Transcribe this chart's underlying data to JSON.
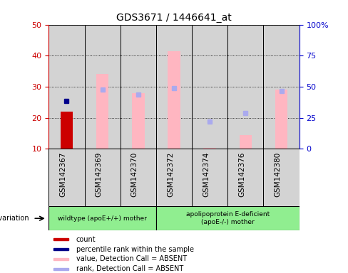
{
  "title": "GDS3671 / 1446641_at",
  "samples": [
    "GSM142367",
    "GSM142369",
    "GSM142370",
    "GSM142372",
    "GSM142374",
    "GSM142376",
    "GSM142380"
  ],
  "group1_count": 3,
  "group2_count": 4,
  "group1_label": "wildtype (apoE+/+) mother",
  "group2_label": "apolipoprotein E-deficient\n(apoE-/-) mother",
  "group_color": "#90EE90",
  "count_bars": {
    "GSM142367": 22,
    "GSM142369": null,
    "GSM142370": null,
    "GSM142372": null,
    "GSM142374": null,
    "GSM142376": null,
    "GSM142380": null
  },
  "percentile_rank_squares": {
    "GSM142367": 25.5
  },
  "value_absent_bars": {
    "GSM142369": 34,
    "GSM142370": 28,
    "GSM142372": 41.5,
    "GSM142374": 10.3,
    "GSM142376": 14.5,
    "GSM142380": 29
  },
  "rank_absent_squares": {
    "GSM142369": 29,
    "GSM142370": 27.5,
    "GSM142372": 29.5,
    "GSM142374": 18.8,
    "GSM142376": 21.5,
    "GSM142380": 28.5
  },
  "ylim_left": [
    10,
    50
  ],
  "ylim_right": [
    0,
    100
  ],
  "left_ticks": [
    10,
    20,
    30,
    40,
    50
  ],
  "right_ticks": [
    0,
    25,
    50,
    75,
    100
  ],
  "left_tick_color": "#CC0000",
  "right_tick_color": "#0000CC",
  "bar_color_count": "#CC0000",
  "bar_color_absent": "#FFB6C1",
  "square_color_rank": "#00008B",
  "square_color_rank_absent": "#AAAAEE",
  "col_bg_color": "#D3D3D3",
  "legend_items": [
    {
      "color": "#CC0000",
      "label": "count"
    },
    {
      "color": "#00008B",
      "label": "percentile rank within the sample"
    },
    {
      "color": "#FFB6C1",
      "label": "value, Detection Call = ABSENT"
    },
    {
      "color": "#AAAAEE",
      "label": "rank, Detection Call = ABSENT"
    }
  ]
}
